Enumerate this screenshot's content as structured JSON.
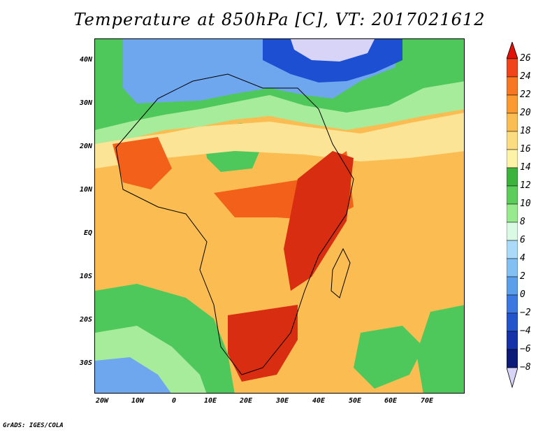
{
  "title": "Temperature at 850hPa [C], VT: 2017021612",
  "credit": "GrADS: IGES/COLA",
  "map": {
    "lat_ticks": [
      "40N",
      "30N",
      "20N",
      "10N",
      "EQ",
      "10S",
      "20S",
      "30S"
    ],
    "lon_ticks": [
      "20W",
      "10W",
      "0",
      "10E",
      "20E",
      "30E",
      "40E",
      "50E",
      "60E",
      "70E"
    ],
    "colors": {
      "ocean_warm": "#fbbd52",
      "land_hot": "#f2601a",
      "very_hot": "#d82d10",
      "pale": "#fbe495",
      "green": "#4ec85a",
      "light_green": "#a6ec9a",
      "cool_blue": "#6ea7ee",
      "deep_blue": "#1d4fd2",
      "lavender": "#d8d4f8"
    }
  },
  "colorbar": {
    "labels": [
      "26",
      "24",
      "22",
      "20",
      "18",
      "16",
      "14",
      "12",
      "10",
      "8",
      "6",
      "4",
      "2",
      "0",
      "−2",
      "−4",
      "−6",
      "−8"
    ],
    "colors": [
      "#e0120a",
      "#f2441a",
      "#f77722",
      "#fa9a30",
      "#fbbd52",
      "#fcdc80",
      "#fdf3a8",
      "#3cb33c",
      "#5ccc5a",
      "#98ea8e",
      "#dafae6",
      "#aadaf8",
      "#82bff2",
      "#5b9fea",
      "#3c78e0",
      "#2254cc",
      "#1532a8",
      "#0c1a78",
      "#d8d4f8"
    ]
  }
}
